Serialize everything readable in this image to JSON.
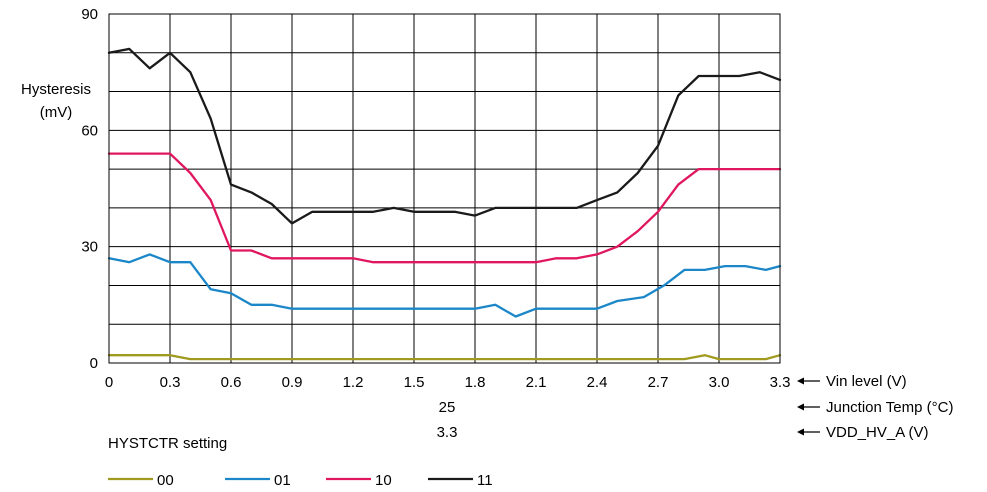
{
  "chart_data": {
    "type": "line",
    "ylabel_lines": [
      "Hysteresis",
      "(mV)"
    ],
    "ylim": [
      0,
      90
    ],
    "y_ticks": [
      "0",
      "30",
      "60",
      "90"
    ],
    "xlim": [
      0,
      3.3
    ],
    "x_ticks": [
      "0",
      "0.3",
      "0.6",
      "0.9",
      "1.2",
      "1.5",
      "1.8",
      "2.1",
      "2.4",
      "2.7",
      "3.0",
      "3.3"
    ],
    "grid": true,
    "axis_labels": {
      "vin": "Vin level (V)",
      "temp": "Junction Temp (°C)",
      "vdd": "VDD_HV_A (V)"
    },
    "conditions": {
      "temp": "25",
      "vdd": "3.3"
    },
    "legend_title": "HYSTCTR setting",
    "legend_placement": "bottom-left",
    "series": [
      {
        "name": "00",
        "color": "#a09a1e",
        "x": [
          0,
          0.3,
          0.4,
          2.7,
          2.83,
          2.93,
          3.0,
          3.23,
          3.3
        ],
        "y": [
          2,
          2,
          1,
          1,
          1,
          2,
          1,
          1,
          2
        ]
      },
      {
        "name": "01",
        "color": "#1b87c8",
        "x": [
          0,
          0.1,
          0.2,
          0.3,
          0.4,
          0.5,
          0.6,
          0.7,
          0.8,
          0.9,
          1.0,
          1.7,
          1.8,
          1.9,
          2.0,
          2.1,
          2.4,
          2.5,
          2.63,
          2.73,
          2.83,
          2.93,
          3.03,
          3.13,
          3.23,
          3.3
        ],
        "y": [
          27,
          26,
          28,
          26,
          26,
          19,
          18,
          15,
          15,
          14,
          14,
          14,
          14,
          15,
          12,
          14,
          14,
          16,
          17,
          20,
          24,
          24,
          25,
          25,
          24,
          25
        ]
      },
      {
        "name": "10",
        "color": "#e0175f",
        "x": [
          0,
          0.3,
          0.4,
          0.5,
          0.6,
          0.7,
          0.8,
          1.2,
          1.3,
          2.0,
          2.1,
          2.2,
          2.3,
          2.4,
          2.5,
          2.6,
          2.7,
          2.8,
          2.9,
          3.3
        ],
        "y": [
          54,
          54,
          49,
          42,
          29,
          29,
          27,
          27,
          26,
          26,
          26,
          27,
          27,
          28,
          30,
          34,
          39,
          46,
          50,
          50
        ]
      },
      {
        "name": "11",
        "color": "#1a1a1a",
        "x": [
          0,
          0.1,
          0.2,
          0.3,
          0.4,
          0.5,
          0.6,
          0.7,
          0.8,
          0.9,
          1.0,
          1.3,
          1.4,
          1.5,
          1.7,
          1.8,
          1.9,
          2.3,
          2.4,
          2.5,
          2.6,
          2.7,
          2.8,
          2.9,
          3.0,
          3.1,
          3.2,
          3.3
        ],
        "y": [
          80,
          81,
          76,
          80,
          75,
          63,
          46,
          44,
          41,
          36,
          39,
          39,
          40,
          39,
          39,
          38,
          40,
          40,
          42,
          44,
          49,
          56,
          69,
          74,
          74,
          74,
          75,
          73
        ]
      }
    ]
  }
}
